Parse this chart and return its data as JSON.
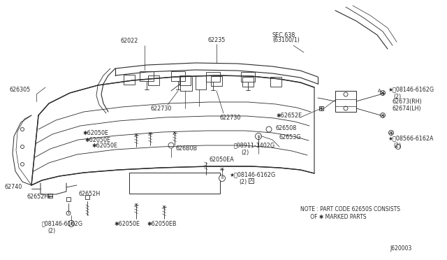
{
  "bg_color": "#ffffff",
  "dc": "#2a2a2a",
  "note_text1": "NOTE : PART CODE 62650S CONSISTS",
  "note_text2": "      OF ✱ MARKED PARTS",
  "diagram_id": "J620003",
  "lw": 0.6
}
